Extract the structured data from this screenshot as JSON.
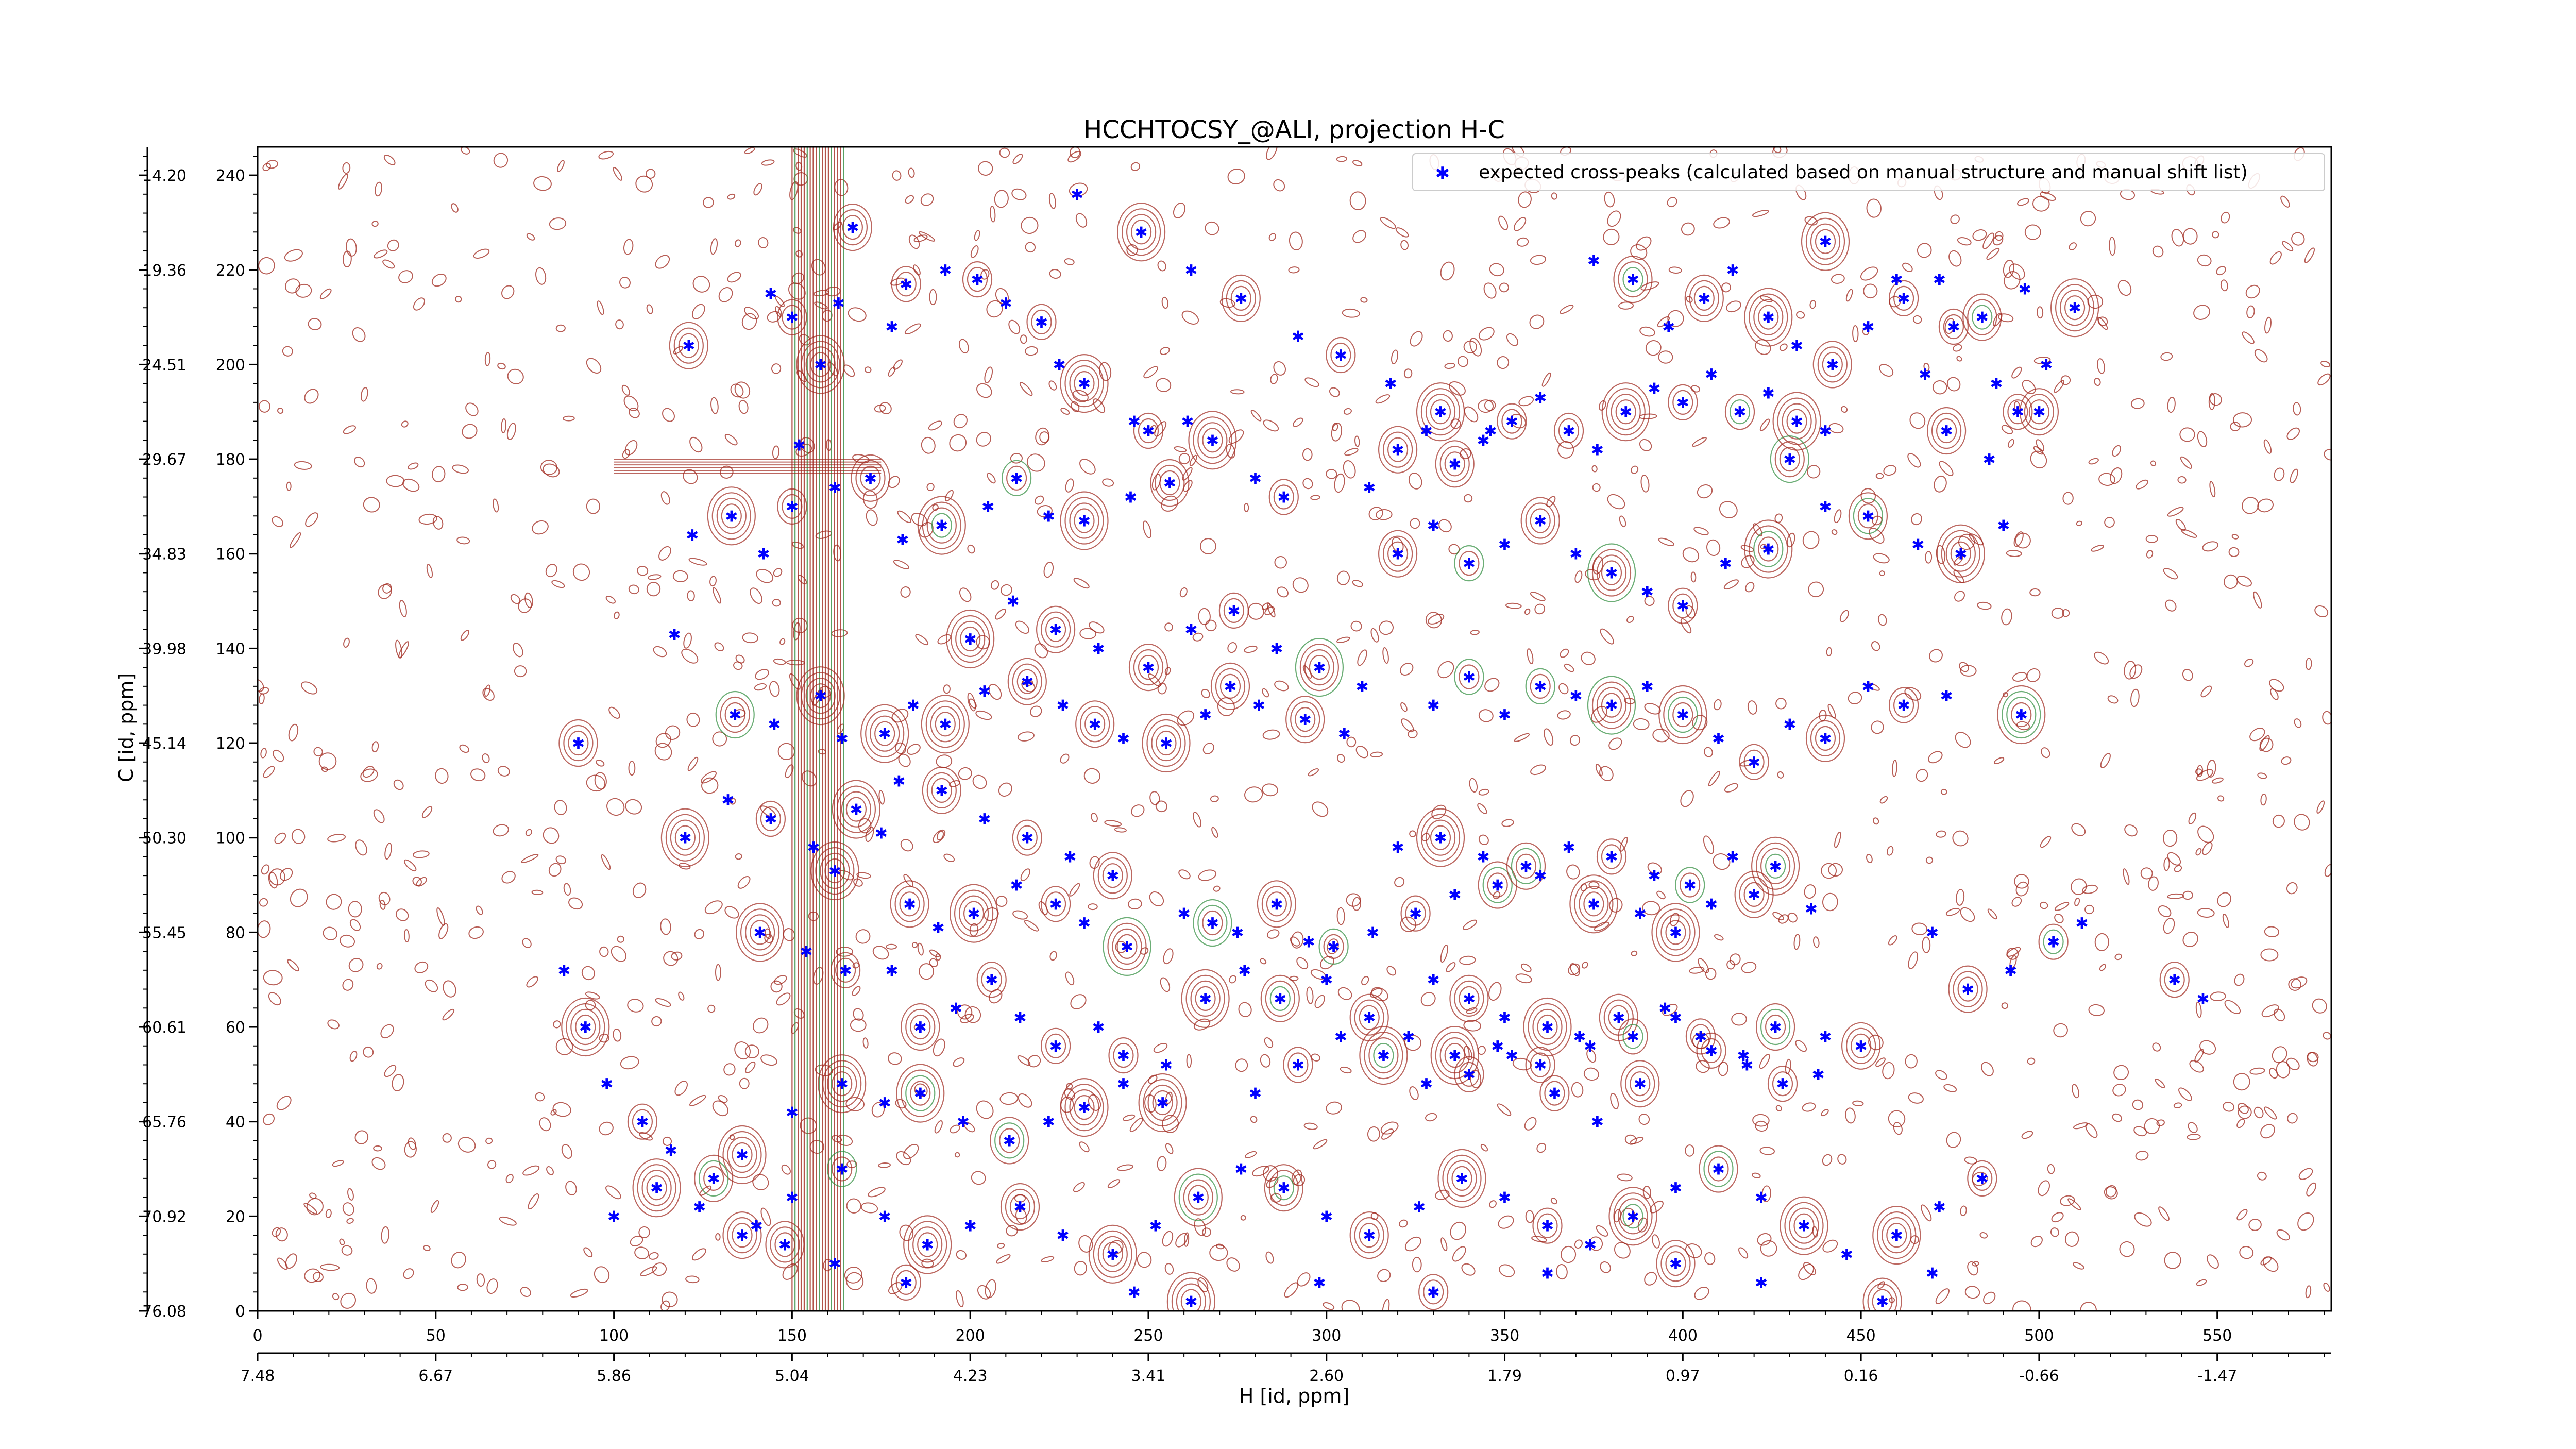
{
  "chart_data": {
    "type": "scatter",
    "title": "HCCHTOCSY_@ALI, projection H-C",
    "xlabel": "H [id, ppm]",
    "ylabel": "C [id, ppm]",
    "x_index_ticks": [
      "0",
      "50",
      "100",
      "150",
      "200",
      "250",
      "300",
      "350",
      "400",
      "450",
      "500",
      "550"
    ],
    "x_ppm_ticks": [
      "7.48",
      "6.67",
      "5.86",
      "5.04",
      "4.23",
      "3.41",
      "2.60",
      "1.79",
      "0.97",
      "0.16",
      "-0.66",
      "-1.47"
    ],
    "y_index_ticks": [
      "0",
      "20",
      "40",
      "60",
      "80",
      "100",
      "120",
      "140",
      "160",
      "180",
      "200",
      "220",
      "240"
    ],
    "y_ppm_ticks": [
      "76.08",
      "70.92",
      "65.76",
      "60.61",
      "55.45",
      "50.30",
      "45.14",
      "39.98",
      "34.83",
      "29.67",
      "24.51",
      "19.36",
      "14.20"
    ],
    "xlim": [
      0,
      582
    ],
    "ylim": [
      0,
      246
    ],
    "legend": {
      "placement": "top-right",
      "label": "expected cross-peaks (calculated based on manual structure and manual shift list)"
    },
    "colors": {
      "peaks": "#0000ff",
      "contour_positive": "#a0281e",
      "contour_negative": "#2e8b3c",
      "frame": "#000000"
    },
    "series": [
      {
        "points": [
          [
            121,
            204
          ],
          [
            144,
            215
          ],
          [
            150,
            210
          ],
          [
            152,
            183
          ],
          [
            158,
            200
          ],
          [
            163,
            213
          ],
          [
            167,
            229
          ],
          [
            178,
            208
          ],
          [
            182,
            217
          ],
          [
            193,
            220
          ],
          [
            202,
            218
          ],
          [
            210,
            213
          ],
          [
            220,
            209
          ],
          [
            225,
            200
          ],
          [
            232,
            196
          ],
          [
            246,
            188
          ],
          [
            250,
            186
          ],
          [
            261,
            188
          ],
          [
            268,
            184
          ],
          [
            280,
            176
          ],
          [
            288,
            172
          ],
          [
            122,
            164
          ],
          [
            133,
            168
          ],
          [
            142,
            160
          ],
          [
            150,
            170
          ],
          [
            162,
            174
          ],
          [
            172,
            176
          ],
          [
            181,
            163
          ],
          [
            192,
            166
          ],
          [
            205,
            170
          ],
          [
            213,
            176
          ],
          [
            222,
            168
          ],
          [
            232,
            167
          ],
          [
            245,
            172
          ],
          [
            256,
            175
          ],
          [
            117,
            143
          ],
          [
            134,
            126
          ],
          [
            145,
            124
          ],
          [
            158,
            130
          ],
          [
            164,
            121
          ],
          [
            176,
            122
          ],
          [
            184,
            128
          ],
          [
            193,
            124
          ],
          [
            204,
            131
          ],
          [
            216,
            133
          ],
          [
            226,
            128
          ],
          [
            235,
            124
          ],
          [
            243,
            121
          ],
          [
            255,
            120
          ],
          [
            266,
            126
          ],
          [
            273,
            132
          ],
          [
            281,
            128
          ],
          [
            294,
            125
          ],
          [
            305,
            122
          ],
          [
            162,
            93
          ],
          [
            175,
            101
          ],
          [
            183,
            86
          ],
          [
            191,
            81
          ],
          [
            201,
            84
          ],
          [
            213,
            90
          ],
          [
            224,
            86
          ],
          [
            232,
            82
          ],
          [
            244,
            77
          ],
          [
            260,
            84
          ],
          [
            268,
            82
          ],
          [
            275,
            80
          ],
          [
            286,
            86
          ],
          [
            295,
            78
          ],
          [
            302,
            77
          ],
          [
            313,
            80
          ],
          [
            325,
            84
          ],
          [
            336,
            88
          ],
          [
            348,
            90
          ],
          [
            360,
            92
          ],
          [
            375,
            86
          ],
          [
            388,
            84
          ],
          [
            398,
            80
          ],
          [
            408,
            86
          ],
          [
            420,
            88
          ],
          [
            436,
            85
          ],
          [
            141,
            80
          ],
          [
            154,
            76
          ],
          [
            165,
            72
          ],
          [
            178,
            72
          ],
          [
            186,
            60
          ],
          [
            196,
            64
          ],
          [
            206,
            70
          ],
          [
            214,
            62
          ],
          [
            224,
            56
          ],
          [
            236,
            60
          ],
          [
            243,
            54
          ],
          [
            255,
            52
          ],
          [
            266,
            66
          ],
          [
            277,
            72
          ],
          [
            287,
            66
          ],
          [
            300,
            70
          ],
          [
            312,
            62
          ],
          [
            323,
            58
          ],
          [
            336,
            54
          ],
          [
            348,
            56
          ],
          [
            360,
            52
          ],
          [
            371,
            58
          ],
          [
            382,
            62
          ],
          [
            395,
            64
          ],
          [
            405,
            58
          ],
          [
            417,
            54
          ],
          [
            426,
            60
          ],
          [
            440,
            58
          ],
          [
            136,
            33
          ],
          [
            150,
            42
          ],
          [
            164,
            48
          ],
          [
            176,
            44
          ],
          [
            186,
            46
          ],
          [
            198,
            40
          ],
          [
            211,
            36
          ],
          [
            222,
            40
          ],
          [
            232,
            43
          ],
          [
            243,
            48
          ],
          [
            254,
            44
          ],
          [
            312,
            174
          ],
          [
            320,
            182
          ],
          [
            328,
            186
          ],
          [
            336,
            179
          ],
          [
            344,
            184
          ],
          [
            352,
            188
          ],
          [
            360,
            193
          ],
          [
            368,
            186
          ],
          [
            376,
            182
          ],
          [
            384,
            190
          ],
          [
            392,
            195
          ],
          [
            400,
            192
          ],
          [
            408,
            198
          ],
          [
            416,
            190
          ],
          [
            424,
            194
          ],
          [
            432,
            188
          ],
          [
            440,
            186
          ],
          [
            320,
            160
          ],
          [
            330,
            166
          ],
          [
            340,
            158
          ],
          [
            350,
            162
          ],
          [
            360,
            167
          ],
          [
            370,
            160
          ],
          [
            380,
            156
          ],
          [
            390,
            152
          ],
          [
            400,
            149
          ],
          [
            412,
            158
          ],
          [
            424,
            161
          ],
          [
            330,
            128
          ],
          [
            340,
            134
          ],
          [
            350,
            126
          ],
          [
            360,
            132
          ],
          [
            370,
            130
          ],
          [
            380,
            128
          ],
          [
            390,
            132
          ],
          [
            400,
            126
          ],
          [
            410,
            121
          ],
          [
            420,
            116
          ],
          [
            430,
            124
          ],
          [
            440,
            121
          ],
          [
            452,
            132
          ],
          [
            462,
            128
          ],
          [
            474,
            130
          ],
          [
            495,
            126
          ],
          [
            320,
            98
          ],
          [
            332,
            100
          ],
          [
            344,
            96
          ],
          [
            356,
            94
          ],
          [
            368,
            98
          ],
          [
            380,
            96
          ],
          [
            392,
            92
          ],
          [
            402,
            90
          ],
          [
            414,
            96
          ],
          [
            426,
            94
          ],
          [
            330,
            70
          ],
          [
            340,
            66
          ],
          [
            350,
            62
          ],
          [
            362,
            60
          ],
          [
            374,
            56
          ],
          [
            386,
            58
          ],
          [
            398,
            62
          ],
          [
            408,
            55
          ],
          [
            418,
            52
          ],
          [
            428,
            48
          ],
          [
            438,
            50
          ],
          [
            450,
            56
          ],
          [
            280,
            46
          ],
          [
            292,
            52
          ],
          [
            304,
            58
          ],
          [
            316,
            54
          ],
          [
            328,
            48
          ],
          [
            340,
            50
          ],
          [
            352,
            54
          ],
          [
            364,
            46
          ],
          [
            376,
            40
          ],
          [
            388,
            48
          ],
          [
            375,
            222
          ],
          [
            386,
            218
          ],
          [
            396,
            208
          ],
          [
            406,
            214
          ],
          [
            414,
            220
          ],
          [
            424,
            210
          ],
          [
            432,
            204
          ],
          [
            442,
            200
          ],
          [
            452,
            208
          ],
          [
            462,
            214
          ],
          [
            472,
            218
          ],
          [
            484,
            210
          ],
          [
            496,
            216
          ],
          [
            430,
            180
          ],
          [
            440,
            170
          ],
          [
            452,
            168
          ],
          [
            466,
            162
          ],
          [
            478,
            160
          ],
          [
            490,
            166
          ],
          [
            90,
            120
          ],
          [
            86,
            72
          ],
          [
            92,
            60
          ],
          [
            98,
            48
          ],
          [
            108,
            40
          ],
          [
            116,
            34
          ],
          [
            128,
            28
          ],
          [
            140,
            18
          ],
          [
            148,
            14
          ],
          [
            162,
            10
          ],
          [
            182,
            6
          ],
          [
            470,
            80
          ],
          [
            480,
            68
          ],
          [
            492,
            72
          ],
          [
            504,
            78
          ],
          [
            512,
            82
          ],
          [
            538,
            70
          ],
          [
            546,
            66
          ],
          [
            510,
            212
          ],
          [
            502,
            200
          ],
          [
            494,
            190
          ],
          [
            468,
            198
          ],
          [
            474,
            186
          ],
          [
            486,
            180
          ],
          [
            440,
            226
          ],
          [
            460,
            218
          ],
          [
            476,
            208
          ],
          [
            488,
            196
          ],
          [
            500,
            190
          ],
          [
            230,
            236
          ],
          [
            248,
            228
          ],
          [
            262,
            220
          ],
          [
            276,
            214
          ],
          [
            292,
            206
          ],
          [
            304,
            202
          ],
          [
            318,
            196
          ],
          [
            332,
            190
          ],
          [
            346,
            186
          ],
          [
            200,
            142
          ],
          [
            212,
            150
          ],
          [
            224,
            144
          ],
          [
            236,
            140
          ],
          [
            250,
            136
          ],
          [
            262,
            144
          ],
          [
            274,
            148
          ],
          [
            286,
            140
          ],
          [
            298,
            136
          ],
          [
            310,
            132
          ],
          [
            120,
            100
          ],
          [
            132,
            108
          ],
          [
            144,
            104
          ],
          [
            156,
            98
          ],
          [
            168,
            106
          ],
          [
            180,
            112
          ],
          [
            192,
            110
          ],
          [
            204,
            104
          ],
          [
            216,
            100
          ],
          [
            228,
            96
          ],
          [
            240,
            92
          ],
          [
            100,
            20
          ],
          [
            112,
            26
          ],
          [
            124,
            22
          ],
          [
            136,
            16
          ],
          [
            150,
            24
          ],
          [
            164,
            30
          ],
          [
            176,
            20
          ],
          [
            188,
            14
          ],
          [
            200,
            18
          ],
          [
            214,
            22
          ],
          [
            226,
            16
          ],
          [
            240,
            12
          ],
          [
            252,
            18
          ],
          [
            264,
            24
          ],
          [
            276,
            30
          ],
          [
            288,
            26
          ],
          [
            300,
            20
          ],
          [
            312,
            16
          ],
          [
            326,
            22
          ],
          [
            338,
            28
          ],
          [
            350,
            24
          ],
          [
            362,
            18
          ],
          [
            374,
            14
          ],
          [
            386,
            20
          ],
          [
            398,
            26
          ],
          [
            410,
            30
          ],
          [
            422,
            24
          ],
          [
            434,
            18
          ],
          [
            446,
            12
          ],
          [
            460,
            16
          ],
          [
            472,
            22
          ],
          [
            484,
            28
          ],
          [
            246,
            4
          ],
          [
            262,
            2
          ],
          [
            298,
            6
          ],
          [
            330,
            4
          ],
          [
            362,
            8
          ],
          [
            398,
            10
          ],
          [
            422,
            6
          ],
          [
            456,
            2
          ],
          [
            470,
            8
          ]
        ]
      }
    ]
  }
}
